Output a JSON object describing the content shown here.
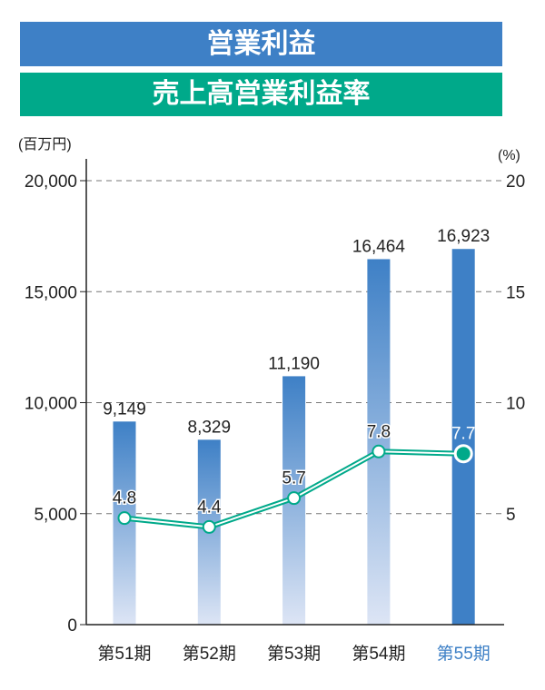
{
  "header": {
    "title1": "営業利益",
    "title2": "売上高営業利益率"
  },
  "colors": {
    "bar_blue": "#3e80c6",
    "line_green": "#00a98a",
    "highlight_label": "#3e80c6"
  },
  "chart_data": {
    "type": "bar+line",
    "categories": [
      "第51期",
      "第52期",
      "第53期",
      "第54期",
      "第55期"
    ],
    "highlight_category": "第55期",
    "left_axis": {
      "unit": "(百万円)",
      "ylim": [
        0,
        20000
      ],
      "ticks": [
        "0",
        "5,000",
        "10,000",
        "15,000",
        "20,000"
      ]
    },
    "right_axis": {
      "unit": "(%)",
      "ylim": [
        0,
        20
      ],
      "ticks": [
        "5",
        "10",
        "15",
        "20"
      ]
    },
    "grid": "dashed horizontal",
    "bars": {
      "values": [
        9149,
        8329,
        11190,
        16464,
        16923
      ],
      "labels": [
        "9,149",
        "8,329",
        "11,190",
        "16,464",
        "16,923"
      ]
    },
    "line": {
      "values": [
        4.8,
        4.4,
        5.7,
        7.8,
        7.7
      ],
      "labels": [
        "4.8",
        "4.4",
        "5.7",
        "7.8",
        "7.7"
      ]
    }
  }
}
